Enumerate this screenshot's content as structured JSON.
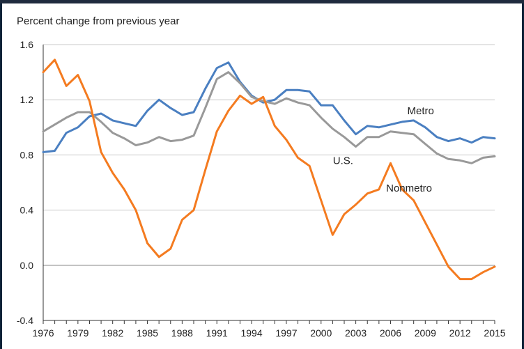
{
  "chart_data": {
    "type": "line",
    "title": "",
    "ylabel": "Percent change from previous year",
    "xlabel": "",
    "xlim": [
      1976,
      2015
    ],
    "ylim": [
      -0.4,
      1.6
    ],
    "yticks": [
      "-0.4",
      "0.0",
      "0.4",
      "0.8",
      "1.2",
      "1.6"
    ],
    "yticks_values": [
      -0.4,
      0.0,
      0.4,
      0.8,
      1.2,
      1.6
    ],
    "xticks": [
      "1976",
      "1979",
      "1982",
      "1985",
      "1988",
      "1991",
      "1994",
      "1997",
      "2000",
      "2003",
      "2006",
      "2009",
      "2012",
      "2015"
    ],
    "xticks_values": [
      1976,
      1979,
      1982,
      1985,
      1988,
      1991,
      1994,
      1997,
      2000,
      2003,
      2006,
      2009,
      2012,
      2015
    ],
    "grid": true,
    "x": [
      1976,
      1977,
      1978,
      1979,
      1980,
      1981,
      1982,
      1983,
      1984,
      1985,
      1986,
      1987,
      1988,
      1989,
      1990,
      1991,
      1992,
      1993,
      1994,
      1995,
      1996,
      1997,
      1998,
      1999,
      2000,
      2001,
      2002,
      2003,
      2004,
      2005,
      2006,
      2007,
      2008,
      2009,
      2010,
      2011,
      2012,
      2013,
      2014,
      2015
    ],
    "series": [
      {
        "name": "Metro",
        "color": "#4a7fc1",
        "label_year": 2008.6,
        "label_value": 1.12,
        "values": [
          0.82,
          0.83,
          0.96,
          1.0,
          1.08,
          1.1,
          1.05,
          1.03,
          1.01,
          1.12,
          1.2,
          1.14,
          1.09,
          1.11,
          1.28,
          1.43,
          1.47,
          1.33,
          1.23,
          1.18,
          1.2,
          1.27,
          1.27,
          1.26,
          1.16,
          1.16,
          1.05,
          0.95,
          1.01,
          1.0,
          1.02,
          1.04,
          1.05,
          1.0,
          0.93,
          0.9,
          0.92,
          0.89,
          0.93,
          0.92
        ]
      },
      {
        "name": "U.S.",
        "color": "#999999",
        "label_year": 2001.9,
        "label_value": 0.76,
        "values": [
          0.97,
          1.02,
          1.07,
          1.11,
          1.11,
          1.04,
          0.96,
          0.92,
          0.87,
          0.89,
          0.93,
          0.9,
          0.91,
          0.94,
          1.14,
          1.35,
          1.4,
          1.32,
          1.22,
          1.19,
          1.17,
          1.21,
          1.18,
          1.16,
          1.07,
          0.99,
          0.93,
          0.86,
          0.93,
          0.93,
          0.97,
          0.96,
          0.95,
          0.88,
          0.81,
          0.77,
          0.76,
          0.74,
          0.78,
          0.79
        ]
      },
      {
        "name": "Nonmetro",
        "color": "#f47b20",
        "label_year": 2007.6,
        "label_value": 0.56,
        "values": [
          1.4,
          1.49,
          1.3,
          1.38,
          1.19,
          0.82,
          0.67,
          0.55,
          0.4,
          0.16,
          0.06,
          0.12,
          0.33,
          0.4,
          0.69,
          0.97,
          1.12,
          1.23,
          1.17,
          1.22,
          1.01,
          0.91,
          0.78,
          0.72,
          0.47,
          0.22,
          0.37,
          0.44,
          0.52,
          0.55,
          0.74,
          0.55,
          0.47,
          0.31,
          0.15,
          -0.01,
          -0.1,
          -0.1,
          -0.05,
          -0.01
        ]
      }
    ]
  },
  "colors": {
    "grid": "#c8c8c8",
    "zero_line": "#8a8a8a",
    "axis": "#333333",
    "frame": "#0d2238"
  }
}
